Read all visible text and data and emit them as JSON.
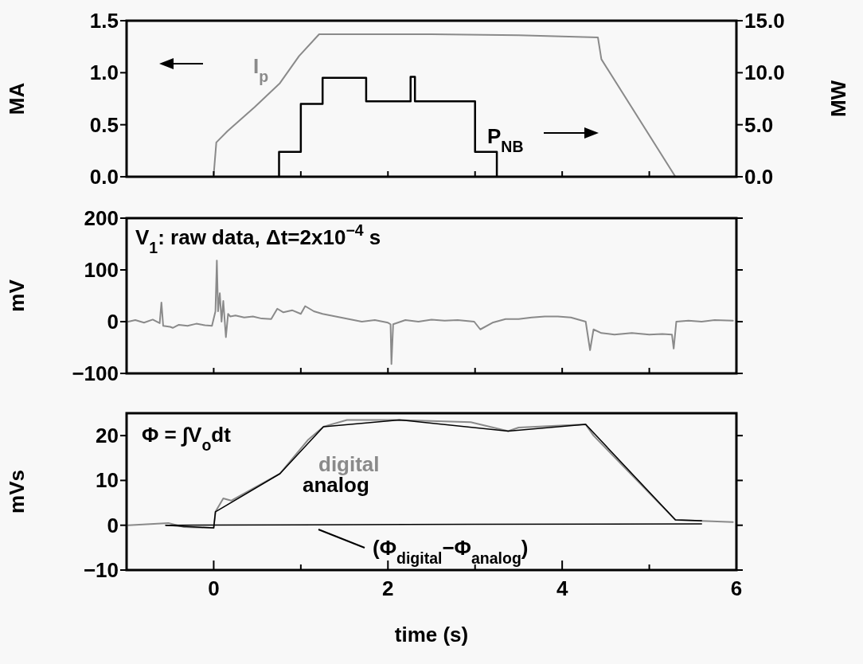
{
  "chart_data": [
    {
      "type": "line",
      "ylabel": "MA",
      "y2label": "MW",
      "xlim": [
        -1,
        6
      ],
      "xticks": [
        {
          "value": 0,
          "label": null
        },
        {
          "value": 1,
          "label": null
        },
        {
          "value": 2,
          "label": null
        },
        {
          "value": 3,
          "label": null
        },
        {
          "value": 4,
          "label": null
        },
        {
          "value": 5,
          "label": null
        }
      ],
      "ylim": [
        0,
        1.5
      ],
      "yticks": [
        {
          "value": 0,
          "label": "0.0"
        },
        {
          "value": 0.5,
          "label": "0.5"
        },
        {
          "value": 1,
          "label": "1.0"
        },
        {
          "value": 1.5,
          "label": "1.5"
        }
      ],
      "y2lim": [
        0,
        15
      ],
      "y2ticks": [
        {
          "value": 0,
          "label": "0.0"
        },
        {
          "value": 5,
          "label": "5.0"
        },
        {
          "value": 10,
          "label": "10.0"
        },
        {
          "value": 15,
          "label": "15.0"
        }
      ],
      "tick_labels": "y",
      "series": [
        {
          "name": "I$_{p}$",
          "color": "#8a8a8a",
          "x": [
            0.0,
            0.03,
            0.16,
            0.47,
            0.76,
            0.98,
            1.21,
            2.5,
            3.5,
            4.41,
            4.45,
            5.3
          ],
          "values": [
            0.02,
            0.33,
            0.44,
            0.67,
            0.9,
            1.16,
            1.37,
            1.37,
            1.36,
            1.34,
            1.13,
            0.0
          ]
        },
        {
          "name": "P$_{NB}$",
          "type": "step",
          "axis": "y2",
          "color": "#000000",
          "x": [
            0.75,
            0.75,
            1.0,
            1.25,
            1.75,
            2.26,
            2.31,
            3.0,
            3.25
          ],
          "values": [
            0,
            2.4,
            7.0,
            9.5,
            7.25,
            9.6,
            7.25,
            2.4,
            0
          ]
        }
      ]
    },
    {
      "type": "line",
      "ylabel": "mV",
      "xlim": [
        -1,
        6
      ],
      "xticks": [
        {
          "value": 0,
          "label": null
        },
        {
          "value": 1,
          "label": null
        },
        {
          "value": 2,
          "label": null
        },
        {
          "value": 3,
          "label": null
        },
        {
          "value": 4,
          "label": null
        },
        {
          "value": 5,
          "label": null
        }
      ],
      "ylim": [
        -100,
        200
      ],
      "yticks": [
        {
          "value": -100,
          "label": "−100"
        },
        0,
        100,
        200
      ],
      "tick_labels": "y",
      "annotations": [
        "V$_{1}$: raw data, Δt=2x10$^{−4}$ s"
      ],
      "series": [
        {
          "color": "#8a8a8a",
          "x": [
            -0.98,
            -0.9,
            -0.8,
            -0.7,
            -0.62,
            -0.6,
            -0.58,
            -0.5,
            -0.47,
            -0.4,
            -0.3,
            -0.2,
            -0.1,
            -0.02,
            0.02,
            0.036,
            0.05,
            0.07,
            0.09,
            0.11,
            0.14,
            0.165,
            0.19,
            0.25,
            0.35,
            0.45,
            0.55,
            0.66,
            0.73,
            0.8,
            0.9,
            1.0,
            1.05,
            1.15,
            1.25,
            1.4,
            1.55,
            1.7,
            1.85,
            2.0,
            2.03,
            2.04,
            2.06,
            2.2,
            2.35,
            2.5,
            2.65,
            2.8,
            2.99,
            3.06,
            3.2,
            3.35,
            3.5,
            3.65,
            3.8,
            3.95,
            4.1,
            4.27,
            4.32,
            4.36,
            4.45,
            4.6,
            4.8,
            5.0,
            5.15,
            5.26,
            5.28,
            5.31,
            5.45,
            5.6,
            5.75,
            5.96
          ],
          "values": [
            0,
            3,
            -2,
            4,
            -3,
            37,
            -8,
            -10,
            -12,
            -6,
            -8,
            -4,
            -7,
            -8,
            20,
            118,
            20,
            55,
            0,
            40,
            -30,
            15,
            10,
            12,
            8,
            10,
            6,
            5,
            25,
            18,
            22,
            15,
            30,
            20,
            15,
            10,
            5,
            0,
            3,
            -2,
            -5,
            -82,
            -5,
            3,
            0,
            4,
            2,
            3,
            0,
            -15,
            -2,
            5,
            5,
            8,
            10,
            10,
            8,
            0,
            -55,
            -15,
            -22,
            -25,
            -22,
            -25,
            -24,
            -25,
            -52,
            0,
            2,
            0,
            3,
            2
          ]
        }
      ]
    },
    {
      "type": "line",
      "ylabel": "mVs",
      "xlabel": "time (s)",
      "xlim": [
        -1,
        6
      ],
      "xticks": [
        0,
        {
          "value": 1,
          "label": null
        },
        2,
        {
          "value": 3,
          "label": null
        },
        4,
        {
          "value": 5,
          "label": null
        },
        6
      ],
      "ylim": [
        -10,
        25
      ],
      "yticks": [
        {
          "value": -10,
          "label": "−10"
        },
        0,
        10,
        20
      ],
      "annotations": [
        "Φ = ∫V$_{o}$dt"
      ],
      "series": [
        {
          "name": "analog",
          "color": "#000000",
          "x": [
            -0.55,
            0.0,
            0.02,
            0.76,
            1.26,
            2.13,
            3.38,
            4.27,
            5.3,
            5.6
          ],
          "values": [
            0,
            -0.6,
            3,
            11.5,
            22,
            23.5,
            21,
            22.5,
            1.2,
            1.0
          ]
        },
        {
          "name": "digital",
          "color": "#8a8a8a",
          "x": [
            -0.98,
            -0.52,
            -0.34,
            0.0,
            0.02,
            0.11,
            0.2,
            0.76,
            1.08,
            1.26,
            1.53,
            2.13,
            2.95,
            3.38,
            3.5,
            4.27,
            4.36,
            5.3,
            5.96
          ],
          "values": [
            0,
            0.5,
            -0.4,
            -0.6,
            3,
            6,
            5.5,
            11.5,
            19,
            22,
            23.5,
            23.5,
            23,
            21,
            21.8,
            22.5,
            20,
            1.2,
            0.7
          ]
        },
        {
          "name": "(Φ$_{digital}$−Φ$_{analog}$)",
          "color": "#000000",
          "x": [
            -0.55,
            1,
            3,
            5.6
          ],
          "values": [
            0,
            0.1,
            0.2,
            0.3
          ]
        }
      ]
    }
  ]
}
